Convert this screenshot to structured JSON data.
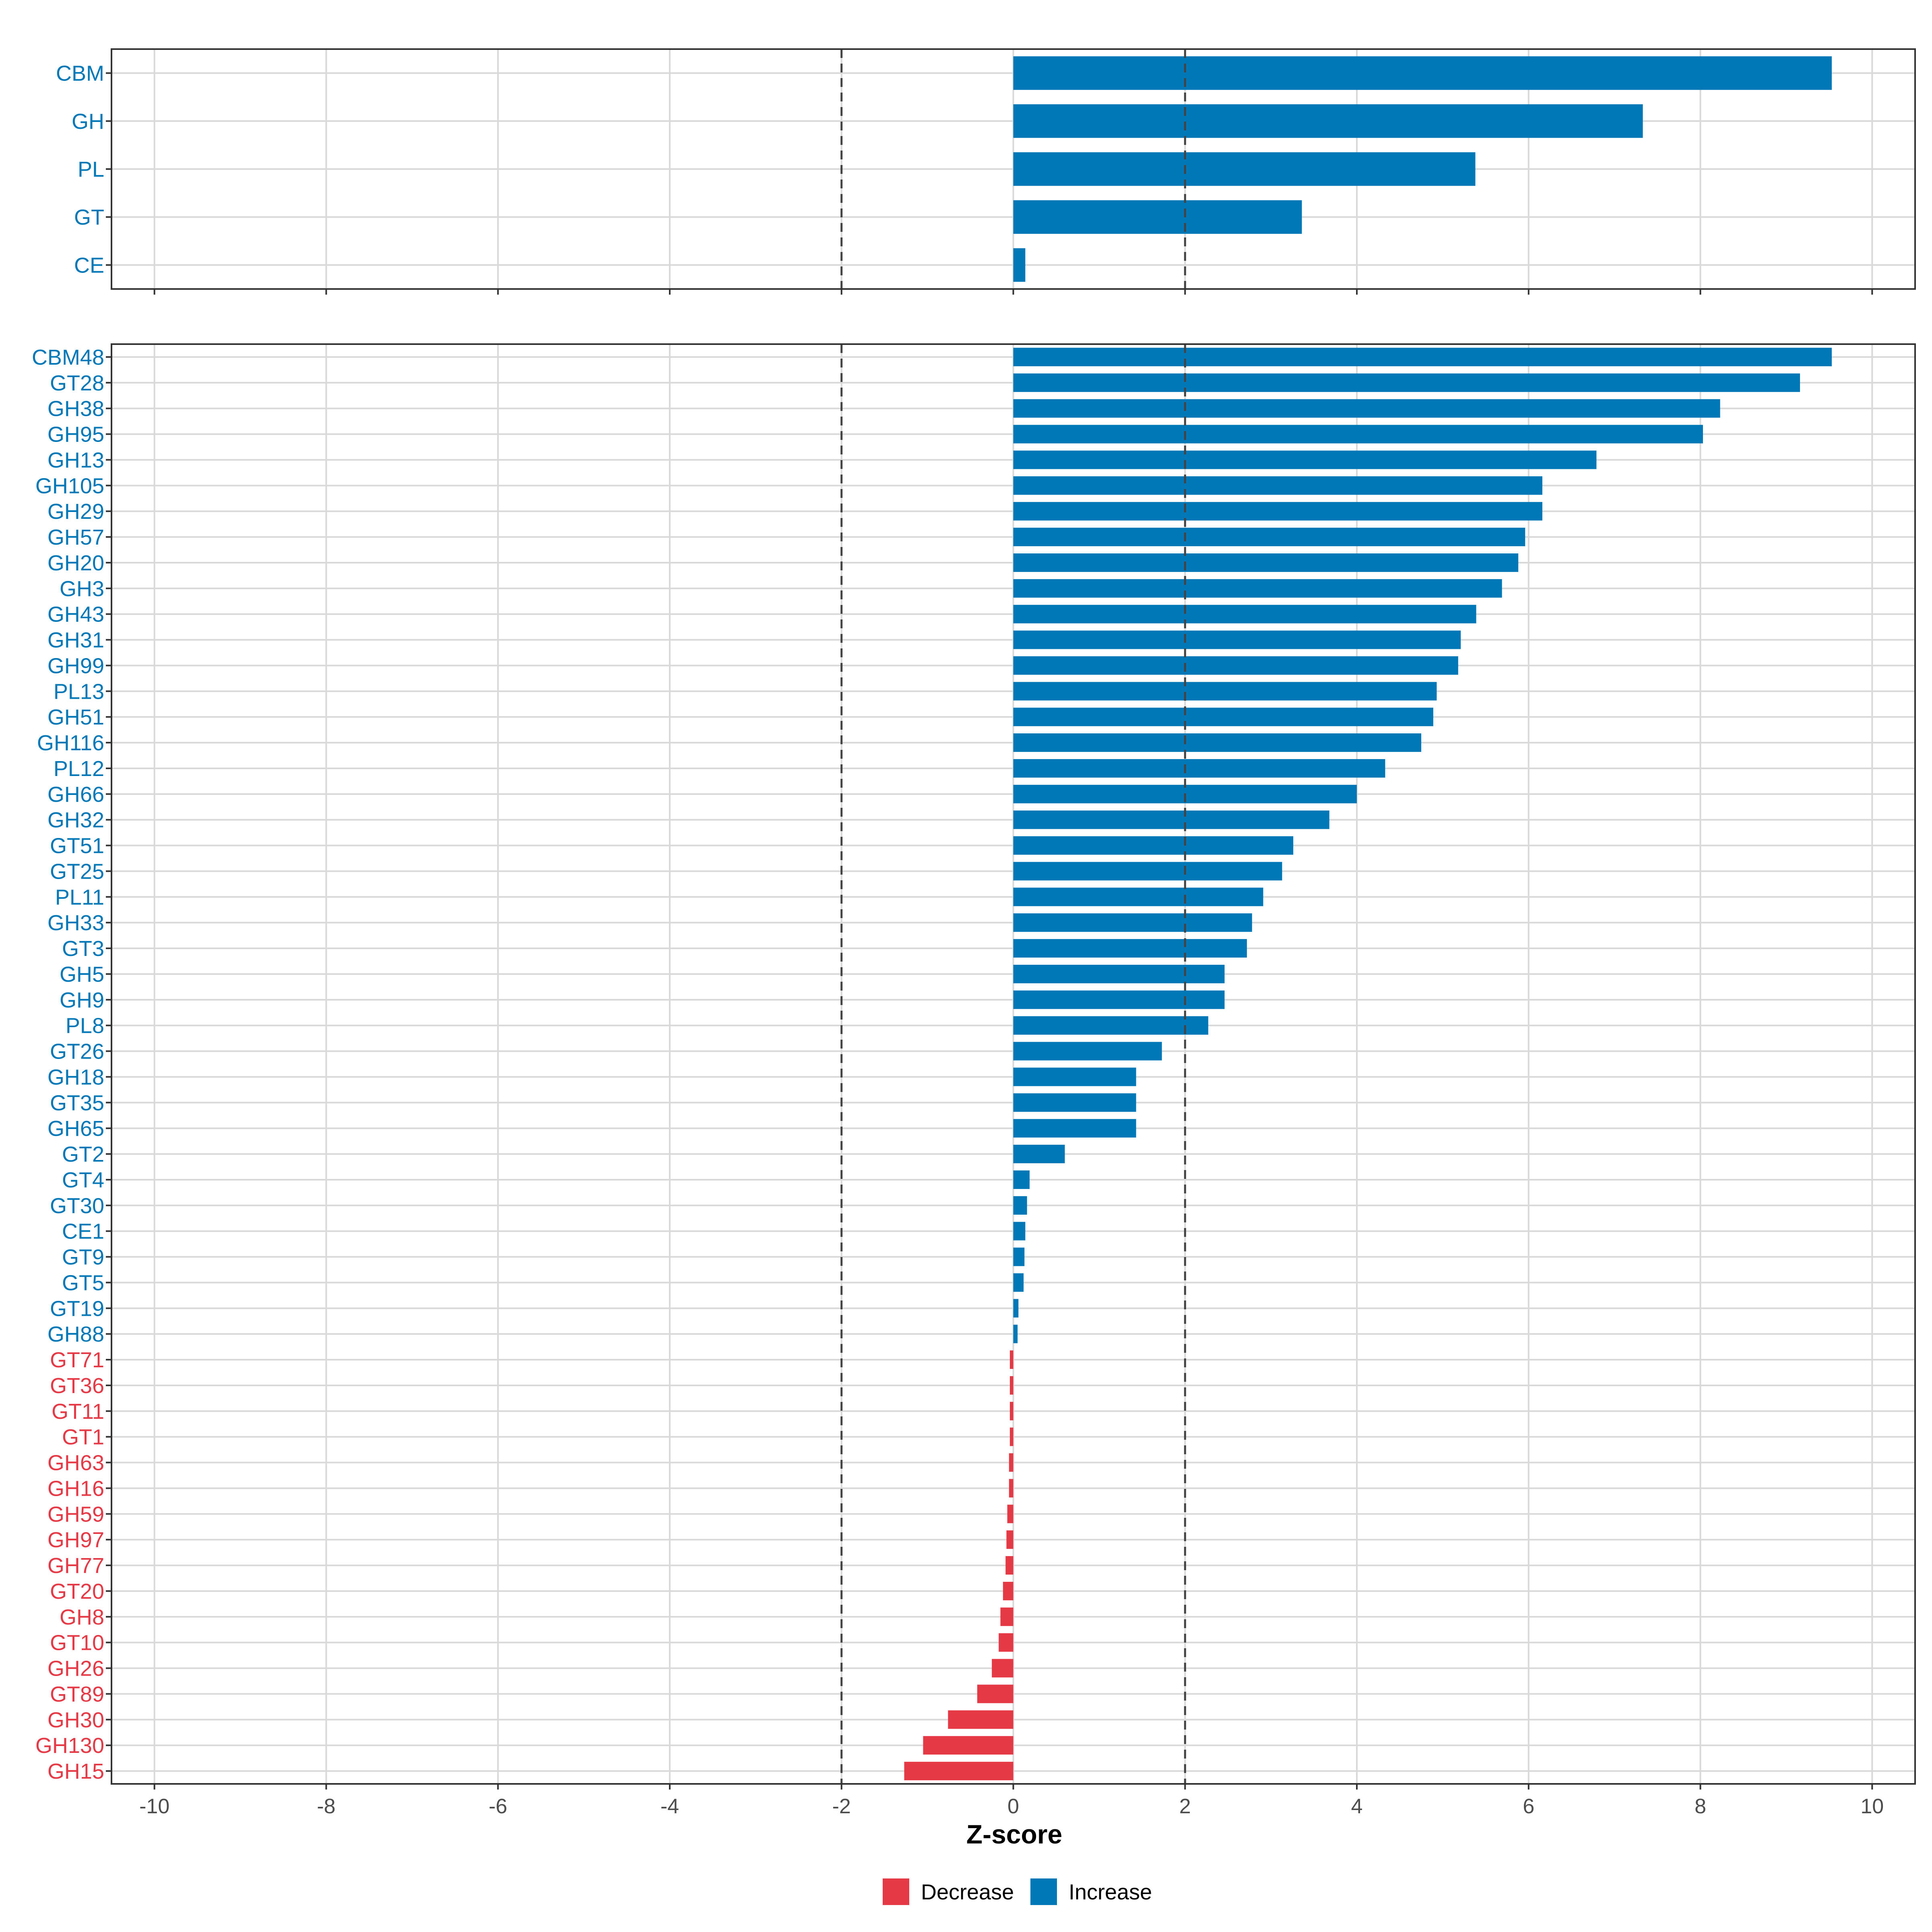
{
  "chart_data": [
    {
      "type": "bar",
      "orientation": "horizontal",
      "panel": "top",
      "categories": [
        "CBM",
        "GH",
        "PL",
        "GT",
        "CE"
      ],
      "values": [
        9.53,
        7.33,
        5.38,
        3.36,
        0.14
      ],
      "direction": [
        "Increase",
        "Increase",
        "Increase",
        "Increase",
        "Increase"
      ],
      "xlim": [
        -10.5,
        10.5
      ],
      "reference_lines": [
        -2,
        2
      ],
      "grid": true
    },
    {
      "type": "bar",
      "orientation": "horizontal",
      "panel": "bottom",
      "categories": [
        "CBM48",
        "GT28",
        "GH38",
        "GH95",
        "GH13",
        "GH105",
        "GH29",
        "GH57",
        "GH20",
        "GH3",
        "GH43",
        "GH31",
        "GH99",
        "PL13",
        "GH51",
        "GH116",
        "PL12",
        "GH66",
        "GH32",
        "GT51",
        "GT25",
        "PL11",
        "GH33",
        "GT3",
        "GH5",
        "GH9",
        "PL8",
        "GT26",
        "GH18",
        "GT35",
        "GH65",
        "GT2",
        "GT4",
        "GT30",
        "CE1",
        "GT9",
        "GT5",
        "GT19",
        "GH88",
        "GT71",
        "GT36",
        "GT11",
        "GT1",
        "GH63",
        "GH16",
        "GH59",
        "GH97",
        "GH77",
        "GT20",
        "GH8",
        "GT10",
        "GH26",
        "GT89",
        "GH30",
        "GH130",
        "GH15"
      ],
      "values": [
        9.53,
        9.16,
        8.23,
        8.03,
        6.79,
        6.16,
        6.16,
        5.96,
        5.88,
        5.69,
        5.39,
        5.21,
        5.18,
        4.93,
        4.89,
        4.75,
        4.33,
        4.0,
        3.68,
        3.26,
        3.13,
        2.91,
        2.78,
        2.72,
        2.46,
        2.46,
        2.27,
        1.73,
        1.43,
        1.43,
        1.43,
        0.6,
        0.19,
        0.16,
        0.14,
        0.13,
        0.12,
        0.06,
        0.05,
        -0.04,
        -0.04,
        -0.04,
        -0.04,
        -0.05,
        -0.05,
        -0.07,
        -0.08,
        -0.09,
        -0.12,
        -0.15,
        -0.17,
        -0.25,
        -0.42,
        -0.76,
        -1.05,
        -1.27
      ],
      "direction": [
        "Increase",
        "Increase",
        "Increase",
        "Increase",
        "Increase",
        "Increase",
        "Increase",
        "Increase",
        "Increase",
        "Increase",
        "Increase",
        "Increase",
        "Increase",
        "Increase",
        "Increase",
        "Increase",
        "Increase",
        "Increase",
        "Increase",
        "Increase",
        "Increase",
        "Increase",
        "Increase",
        "Increase",
        "Increase",
        "Increase",
        "Increase",
        "Increase",
        "Increase",
        "Increase",
        "Increase",
        "Increase",
        "Increase",
        "Increase",
        "Increase",
        "Increase",
        "Increase",
        "Increase",
        "Increase",
        "Decrease",
        "Decrease",
        "Decrease",
        "Decrease",
        "Decrease",
        "Decrease",
        "Decrease",
        "Decrease",
        "Decrease",
        "Decrease",
        "Decrease",
        "Decrease",
        "Decrease",
        "Decrease",
        "Decrease",
        "Decrease",
        "Decrease"
      ],
      "xlim": [
        -10.5,
        10.5
      ],
      "reference_lines": [
        -2,
        2
      ],
      "grid": true
    }
  ],
  "x_ticks": [
    -10,
    -8,
    -6,
    -4,
    -2,
    0,
    2,
    4,
    6,
    8,
    10
  ],
  "x_tick_labels": [
    "-10",
    "-8",
    "-6",
    "-4",
    "-2",
    "0",
    "2",
    "4",
    "6",
    "8",
    "10"
  ],
  "xlabel": "Z-score",
  "legend": {
    "position": "bottom",
    "items": [
      {
        "label": "Decrease",
        "color": "#e63946"
      },
      {
        "label": "Increase",
        "color": "#0077b6"
      }
    ]
  },
  "colors": {
    "Increase": "#0077b6",
    "Decrease": "#e63946",
    "grid": "#d9d9d9",
    "panel_border": "#333333",
    "reference_line": "#444444"
  }
}
